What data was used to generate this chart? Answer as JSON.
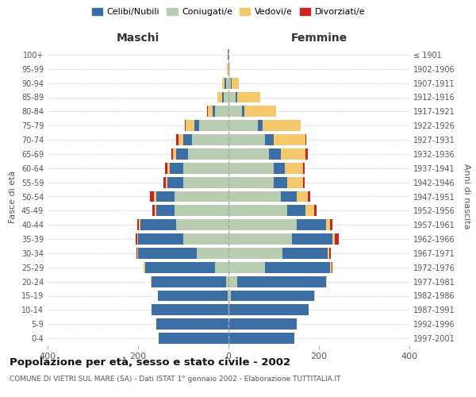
{
  "age_groups": [
    "0-4",
    "5-9",
    "10-14",
    "15-19",
    "20-24",
    "25-29",
    "30-34",
    "35-39",
    "40-44",
    "45-49",
    "50-54",
    "55-59",
    "60-64",
    "65-69",
    "70-74",
    "75-79",
    "80-84",
    "85-89",
    "90-94",
    "95-99",
    "100+"
  ],
  "birth_years": [
    "1997-2001",
    "1992-1996",
    "1987-1991",
    "1982-1986",
    "1977-1981",
    "1972-1976",
    "1967-1971",
    "1962-1966",
    "1957-1961",
    "1952-1956",
    "1947-1951",
    "1942-1946",
    "1937-1941",
    "1932-1936",
    "1927-1931",
    "1922-1926",
    "1917-1921",
    "1912-1916",
    "1907-1911",
    "1902-1906",
    "≤ 1901"
  ],
  "males": {
    "coniugati": [
      0,
      0,
      0,
      2,
      5,
      30,
      70,
      100,
      115,
      120,
      120,
      100,
      100,
      90,
      80,
      65,
      30,
      10,
      5,
      1,
      0
    ],
    "celibi": [
      155,
      160,
      170,
      155,
      165,
      155,
      130,
      100,
      80,
      40,
      40,
      35,
      30,
      25,
      20,
      10,
      5,
      4,
      4,
      1,
      1
    ],
    "vedovi": [
      0,
      0,
      0,
      0,
      2,
      2,
      2,
      2,
      3,
      3,
      5,
      3,
      5,
      8,
      10,
      20,
      10,
      10,
      5,
      1,
      0
    ],
    "divorziati": [
      0,
      0,
      0,
      0,
      0,
      1,
      2,
      3,
      3,
      5,
      8,
      5,
      5,
      3,
      5,
      2,
      2,
      0,
      0,
      0,
      0
    ]
  },
  "females": {
    "coniugate": [
      0,
      0,
      2,
      5,
      20,
      80,
      120,
      140,
      150,
      130,
      115,
      100,
      100,
      90,
      80,
      65,
      30,
      15,
      5,
      1,
      0
    ],
    "nubili": [
      145,
      150,
      175,
      185,
      195,
      145,
      100,
      90,
      65,
      40,
      35,
      30,
      25,
      25,
      20,
      10,
      5,
      5,
      2,
      1,
      0
    ],
    "vedove": [
      0,
      0,
      0,
      1,
      2,
      3,
      3,
      5,
      10,
      20,
      25,
      35,
      40,
      55,
      70,
      85,
      70,
      50,
      15,
      2,
      0
    ],
    "divorziate": [
      0,
      0,
      0,
      0,
      0,
      2,
      3,
      8,
      5,
      5,
      5,
      3,
      3,
      5,
      2,
      0,
      0,
      0,
      0,
      0,
      0
    ]
  },
  "colors": {
    "celibi": "#3A6EA5",
    "coniugati": "#B8CCB0",
    "vedovi": "#F5C96B",
    "divorziati": "#CC2222"
  },
  "xlim": 400,
  "title": "Popolazione per età, sesso e stato civile - 2002",
  "subtitle": "COMUNE DI VIETRI SUL MARE (SA) - Dati ISTAT 1° gennaio 2002 - Elaborazione TUTTITALIA.IT",
  "ylabel_left": "Fasce di età",
  "ylabel_right": "Anni di nascita",
  "xlabel_maschi": "Maschi",
  "xlabel_femmine": "Femmine",
  "legend_labels": [
    "Celibi/Nubili",
    "Coniugati/e",
    "Vedovi/e",
    "Divorziati/e"
  ]
}
